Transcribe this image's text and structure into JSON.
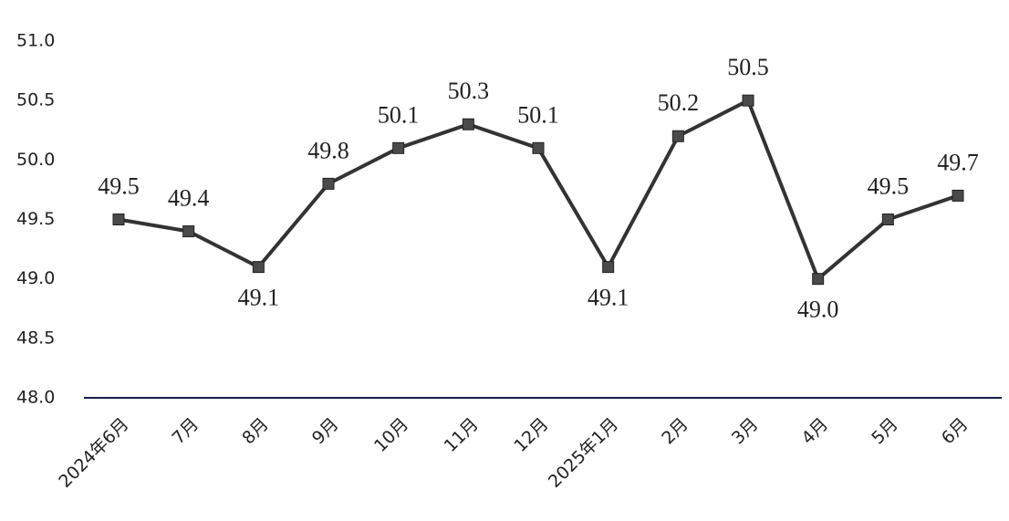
{
  "chart_data": {
    "type": "line",
    "categories": [
      "2024年6月",
      "7月",
      "8月",
      "9月",
      "10月",
      "11月",
      "12月",
      "2025年1月",
      "2月",
      "3月",
      "4月",
      "5月",
      "6月"
    ],
    "series": [
      {
        "color": "#333333",
        "values": [
          49.5,
          49.4,
          49.1,
          49.8,
          50.1,
          50.3,
          50.1,
          49.1,
          50.2,
          50.5,
          49.0,
          49.5,
          49.7
        ],
        "value_labels": [
          "49.5",
          "49.4",
          "49.1",
          "49.8",
          "50.1",
          "50.3",
          "50.1",
          "49.1",
          "50.2",
          "50.5",
          "49.0",
          "49.5",
          "49.7"
        ]
      }
    ],
    "ylim": [
      48.0,
      51.0
    ],
    "yticks": [
      {
        "value": 48.0,
        "label": "48.0"
      },
      {
        "value": 48.5,
        "label": "48.5"
      },
      {
        "value": 49.0,
        "label": "49.0"
      },
      {
        "value": 49.5,
        "label": "49.5"
      },
      {
        "value": 50.0,
        "label": "50.0"
      },
      {
        "value": 50.5,
        "label": "50.5"
      },
      {
        "value": 51.0,
        "label": "51.0"
      }
    ],
    "grid": false
  }
}
